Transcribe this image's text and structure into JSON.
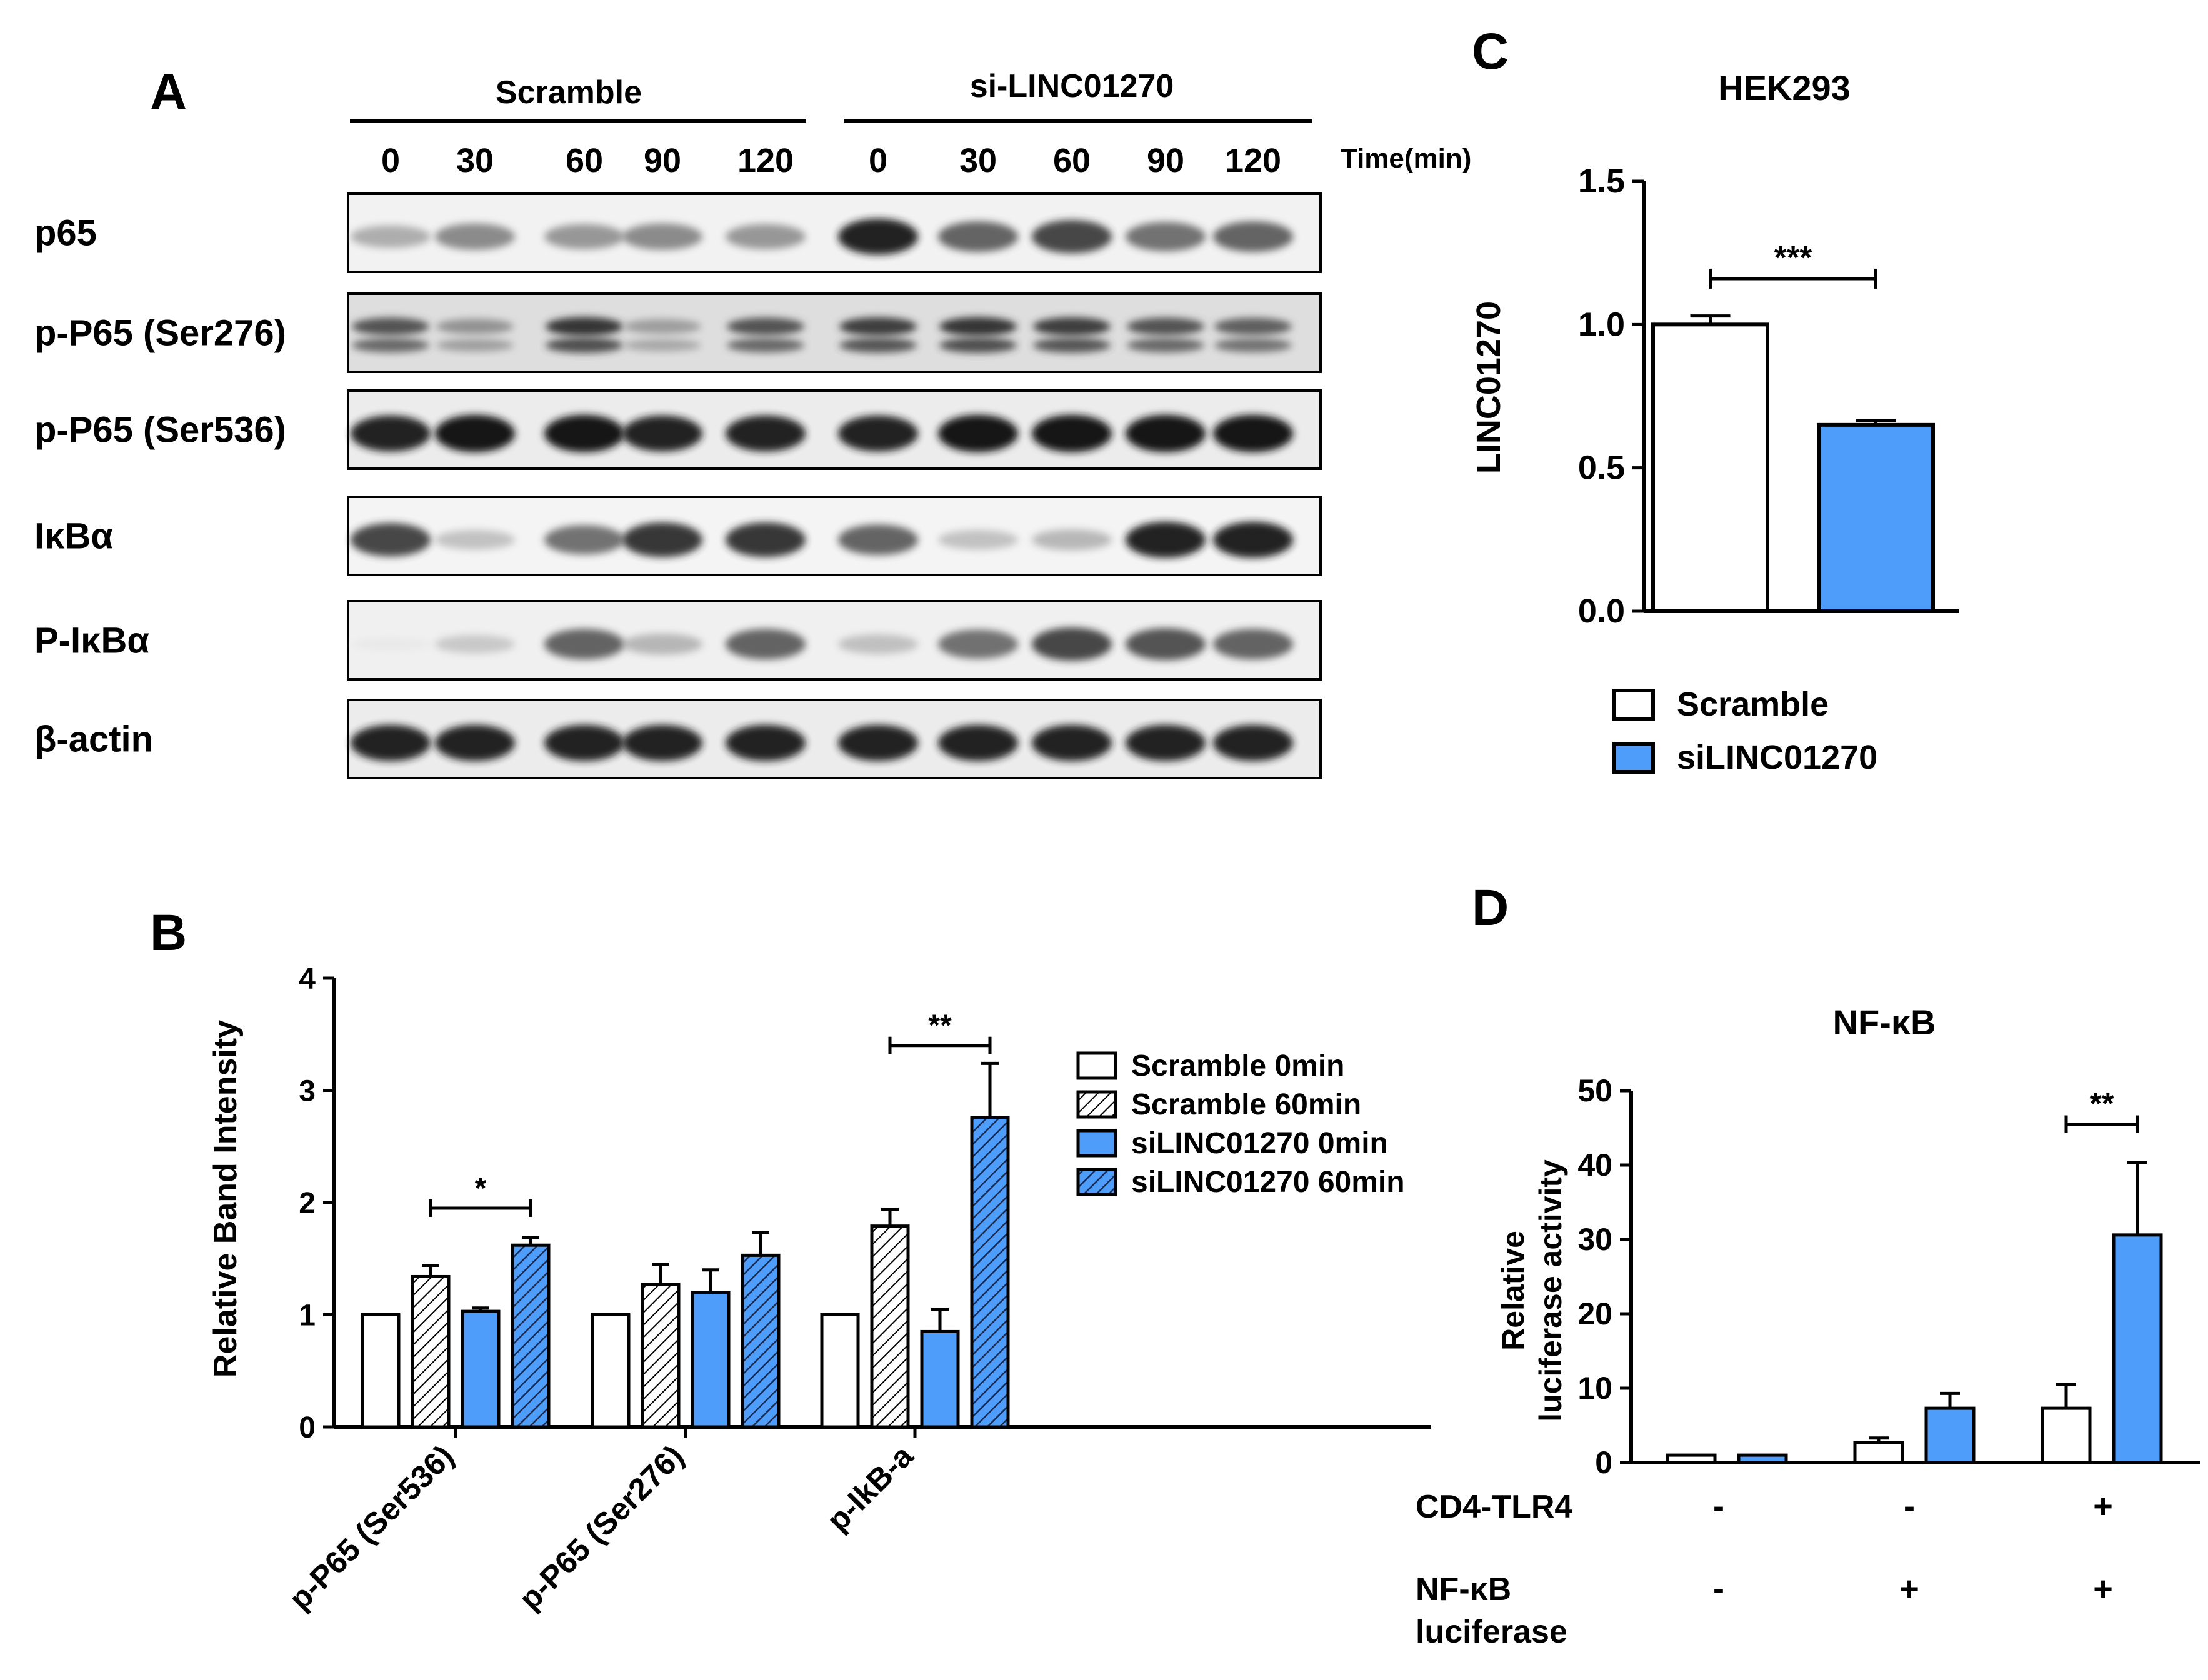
{
  "panelA": {
    "letter": "A",
    "group_labels": [
      "Scramble",
      "si-LINC01270"
    ],
    "time_unit_label": "Time(min)",
    "time_points": [
      "0",
      "30",
      "60",
      "90",
      "120",
      "0",
      "30",
      "60",
      "90",
      "120"
    ],
    "blots": [
      {
        "label": "p65",
        "intensity": [
          0.45,
          0.6,
          0.55,
          0.6,
          0.55,
          0.95,
          0.75,
          0.85,
          0.7,
          0.75
        ],
        "double_band": false,
        "bg": "#f2f2f2"
      },
      {
        "label": "p-P65 (Ser276)",
        "intensity": [
          0.7,
          0.4,
          0.85,
          0.35,
          0.7,
          0.8,
          0.85,
          0.8,
          0.7,
          0.65
        ],
        "double_band": true,
        "bg": "#dedede"
      },
      {
        "label": "p-P65 (Ser536)",
        "intensity": [
          0.95,
          1.0,
          1.0,
          0.95,
          0.95,
          0.95,
          1.0,
          1.0,
          1.0,
          1.0
        ],
        "double_band": false,
        "bg": "#ececec"
      },
      {
        "label": "IκBα",
        "intensity": [
          0.85,
          0.35,
          0.7,
          0.9,
          0.9,
          0.75,
          0.35,
          0.4,
          0.95,
          0.95
        ],
        "double_band": false,
        "bg": "#f4f4f4"
      },
      {
        "label": "P-IκBα",
        "intensity": [
          0.05,
          0.3,
          0.75,
          0.4,
          0.75,
          0.35,
          0.7,
          0.85,
          0.8,
          0.75
        ],
        "double_band": false,
        "bg": "#f0f0f0"
      },
      {
        "label": "β-actin",
        "intensity": [
          0.95,
          0.95,
          0.95,
          0.95,
          0.95,
          0.95,
          0.95,
          0.95,
          0.95,
          0.95
        ],
        "double_band": false,
        "bg": "#ececec"
      }
    ]
  },
  "chart_data": [
    {
      "panel": "B",
      "type": "bar",
      "ylabel": "Relative Band Intensity",
      "ylim": [
        0,
        4
      ],
      "yticks": [
        "0",
        "1",
        "2",
        "3",
        "4"
      ],
      "categories": [
        "p-P65 (Ser536)",
        "p-P65 (Ser276)",
        "p-IkB-a"
      ],
      "series": [
        {
          "name": "Scramble 0min",
          "values": [
            1.0,
            1.0,
            1.0
          ],
          "errors": [
            0,
            0,
            0
          ],
          "fill": "white"
        },
        {
          "name": "Scramble 60min",
          "values": [
            1.34,
            1.27,
            1.79
          ],
          "errors": [
            0.1,
            0.18,
            0.15
          ],
          "fill": "hatch-white"
        },
        {
          "name": "siLINC01270 0min",
          "values": [
            1.03,
            1.2,
            0.85
          ],
          "errors": [
            0.03,
            0.2,
            0.2
          ],
          "fill": "blue"
        },
        {
          "name": "siLINC01270 60min",
          "values": [
            1.62,
            1.53,
            2.76
          ],
          "errors": [
            0.07,
            0.2,
            0.48
          ],
          "fill": "hatch-blue"
        }
      ],
      "significance": [
        {
          "category": 0,
          "from_series": 1,
          "to_series": 3,
          "level": 1.95,
          "label": "*"
        },
        {
          "category": 2,
          "from_series": 1,
          "to_series": 3,
          "level": 3.4,
          "label": "**"
        }
      ],
      "legend_position": "right"
    },
    {
      "panel": "C",
      "type": "bar",
      "title": "HEK293",
      "ylabel": "LINC01270",
      "ylim": [
        0,
        1.5
      ],
      "yticks": [
        "0.0",
        "0.5",
        "1.0",
        "1.5"
      ],
      "categories": [
        "Scramble",
        "siLINC01270"
      ],
      "values": [
        1.0,
        0.65
      ],
      "errors": [
        0.03,
        0.015
      ],
      "fills": [
        "white",
        "blue"
      ],
      "significance": [
        {
          "from": 0,
          "to": 1,
          "level": 1.16,
          "label": "***"
        }
      ],
      "legend": [
        "Scramble",
        "siLINC01270"
      ],
      "legend_position": "bottom"
    },
    {
      "panel": "D",
      "type": "bar",
      "title": "NF-κB",
      "ylabel_lines": [
        "Relative",
        "luciferase activity"
      ],
      "ylim": [
        0,
        50
      ],
      "yticks": [
        "0",
        "10",
        "20",
        "30",
        "40",
        "50"
      ],
      "groups": [
        {
          "white": 1.0,
          "white_err": 0.0,
          "blue": 1.0,
          "blue_err": 0.0
        },
        {
          "white": 2.7,
          "white_err": 0.6,
          "blue": 7.3,
          "blue_err": 2.0
        },
        {
          "white": 7.3,
          "white_err": 3.2,
          "blue": 30.6,
          "blue_err": 9.7
        }
      ],
      "significance": [
        {
          "group": 2,
          "level": 45.5,
          "label": "**"
        }
      ],
      "condition_rows": [
        {
          "label_lines": [
            "CD4-TLR4"
          ],
          "values": [
            "-",
            "-",
            "+"
          ]
        },
        {
          "label_lines": [
            "NF-κB",
            "luciferase"
          ],
          "values": [
            "-",
            "+",
            "+"
          ]
        }
      ]
    }
  ],
  "panel_letters": {
    "B": "B",
    "C": "C",
    "D": "D"
  },
  "colors": {
    "blue": "#4f9dfb",
    "black": "#000000",
    "white": "#ffffff"
  }
}
